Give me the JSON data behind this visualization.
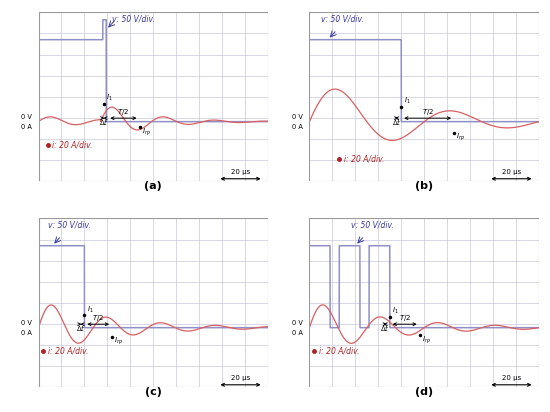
{
  "background_color": "#ffffff",
  "grid_color": "#c8c8dc",
  "panel_bg": "#f0f0f8",
  "voltage_color": "#9090c8",
  "current_color": "#d86060",
  "annotation_color": "#000000",
  "blue_label_color": "#3838a0",
  "red_label_color": "#b02020",
  "panels": [
    "(a)",
    "(b)",
    "(c)",
    "(d)"
  ],
  "v_label": "v: 50 V/div.",
  "i_label": "i: 20 A/div.",
  "scale_label": "20 μs"
}
